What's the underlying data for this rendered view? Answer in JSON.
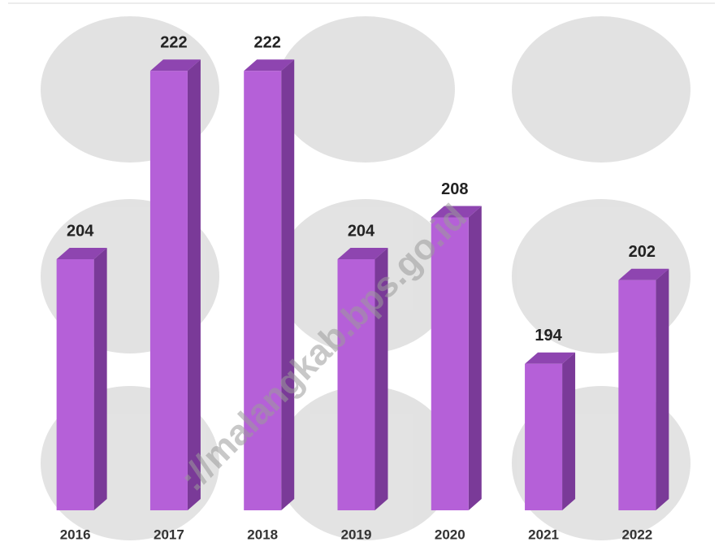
{
  "chart_data": {
    "type": "bar3d",
    "categories": [
      "2016",
      "2017",
      "2018",
      "2019",
      "2020",
      "2021",
      "2022"
    ],
    "values": [
      204,
      222,
      222,
      204,
      208,
      194,
      202
    ],
    "ylim": [
      180,
      228
    ],
    "color": "#b560d8"
  },
  "watermark": "://malangkab.bps.go.id"
}
